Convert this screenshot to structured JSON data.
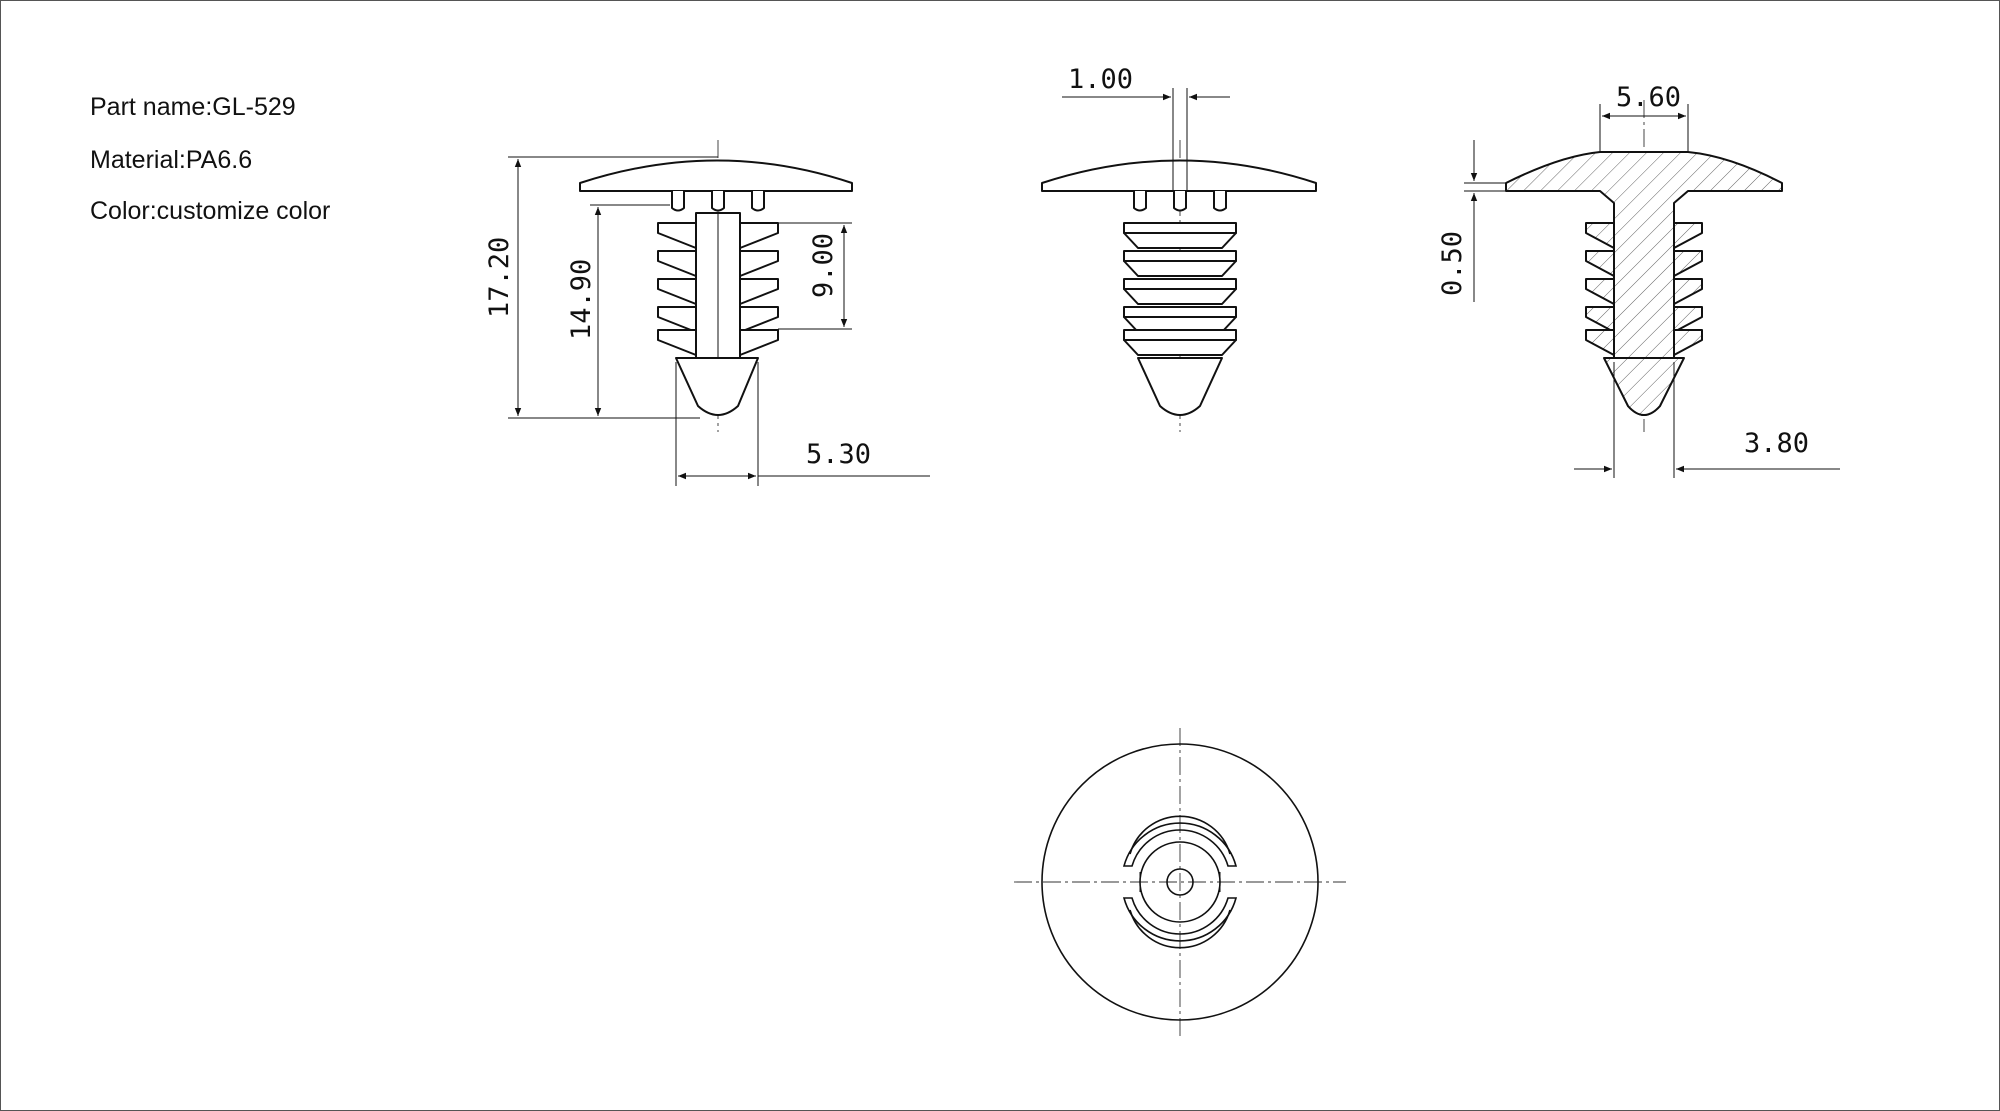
{
  "info": {
    "part_name": "Part name:GL-529",
    "material": "Material:PA6.6",
    "color": "Color:customize color"
  },
  "dimensions": {
    "overall_height": "17.20",
    "shank_height": "14.90",
    "rib_height": "9.00",
    "tip_width": "5.30",
    "slot_width": "1.00",
    "neck_width": "5.60",
    "head_thickness": "0.50",
    "core_width": "3.80"
  }
}
